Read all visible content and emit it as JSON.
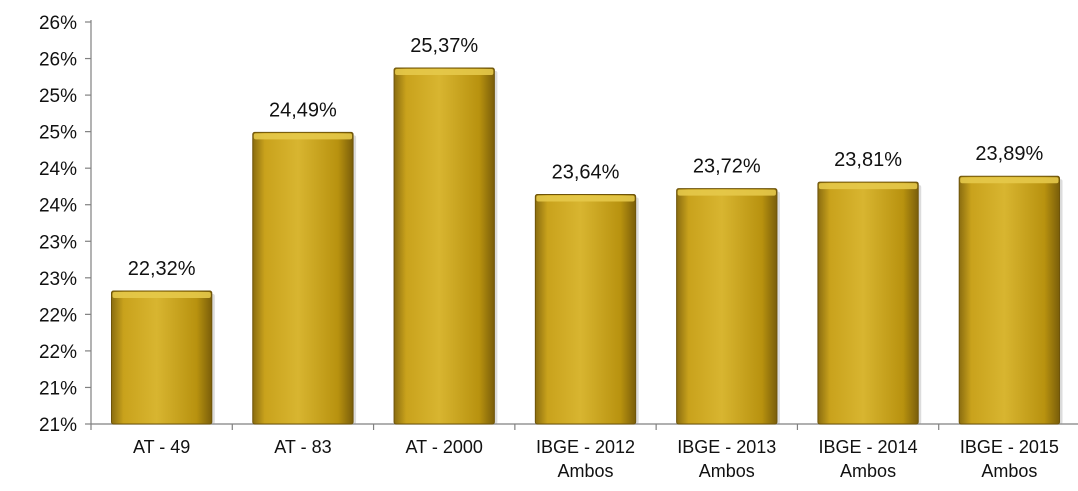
{
  "chart_data": {
    "type": "bar",
    "categories": [
      [
        "AT - 49"
      ],
      [
        "AT - 83"
      ],
      [
        "AT - 2000"
      ],
      [
        "IBGE - 2012",
        "Ambos"
      ],
      [
        "IBGE - 2013",
        "Ambos"
      ],
      [
        "IBGE - 2014",
        "Ambos"
      ],
      [
        "IBGE - 2015",
        "Ambos"
      ]
    ],
    "values": [
      22.32,
      24.49,
      25.37,
      23.64,
      23.72,
      23.81,
      23.89
    ],
    "data_labels": [
      "22,32%",
      "24,49%",
      "25,37%",
      "23,64%",
      "23,72%",
      "23,81%",
      "23,89%"
    ],
    "y_ticks": [
      "21%",
      "21%",
      "22%",
      "22%",
      "23%",
      "23%",
      "24%",
      "24%",
      "25%",
      "25%",
      "26%",
      "26%"
    ],
    "ylim": [
      20.5,
      26.0
    ],
    "title": "",
    "xlabel": "",
    "ylabel": "",
    "grid": false,
    "bar_color": "#C9A21C",
    "bar_highlight": "#E6C94A",
    "bar_shadow": "#8A6D10"
  }
}
